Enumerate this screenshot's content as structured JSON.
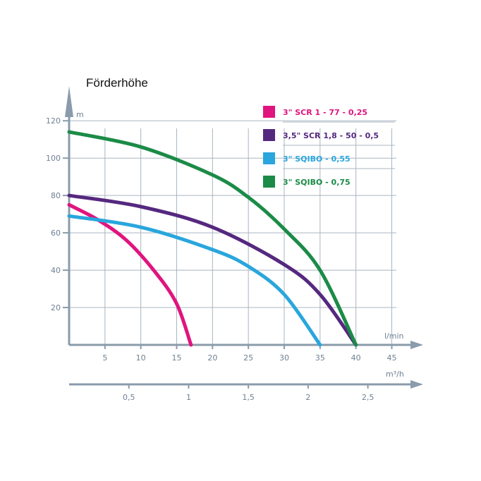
{
  "chart_data": {
    "type": "line",
    "title": "Förderhöhe",
    "ylabel": "m",
    "xlabel": "l/min",
    "x2label": "m³/h",
    "xlim": [
      0,
      48
    ],
    "ylim": [
      0,
      125
    ],
    "x_ticks": [
      5,
      10,
      15,
      20,
      25,
      30,
      35,
      40,
      45
    ],
    "y_ticks": [
      20,
      40,
      60,
      80,
      100,
      120
    ],
    "x2_ticks": [
      {
        "label": "0,5",
        "value": 0.5
      },
      {
        "label": "1",
        "value": 1
      },
      {
        "label": "1,5",
        "value": 1.5
      },
      {
        "label": "2",
        "value": 2
      },
      {
        "label": "2,5",
        "value": 2.5
      }
    ],
    "grid": true,
    "legend": "top-right",
    "series": [
      {
        "name": "3\" SCR 1 - 77 - 0,25",
        "color": "#e0147e",
        "x": [
          0,
          4,
          8,
          12,
          15,
          17
        ],
        "y": [
          75,
          67,
          56,
          39,
          22,
          0
        ]
      },
      {
        "name": "3,5\" SCR 1,8 - 50 - 0,5",
        "color": "#55287f",
        "x": [
          0,
          10,
          20,
          30,
          35,
          40
        ],
        "y": [
          80,
          74,
          63,
          43,
          27,
          0
        ]
      },
      {
        "name": "3\" SQIBO - 0,55",
        "color": "#29a6dd",
        "x": [
          0,
          10,
          20,
          25,
          30,
          35
        ],
        "y": [
          69,
          63,
          51,
          42,
          27,
          0
        ]
      },
      {
        "name": "3\" SQIBO - 0,75",
        "color": "#1b8b47",
        "x": [
          0,
          10,
          20,
          25,
          30,
          35,
          40
        ],
        "y": [
          114,
          106,
          91,
          79,
          62,
          40,
          0
        ]
      }
    ]
  }
}
